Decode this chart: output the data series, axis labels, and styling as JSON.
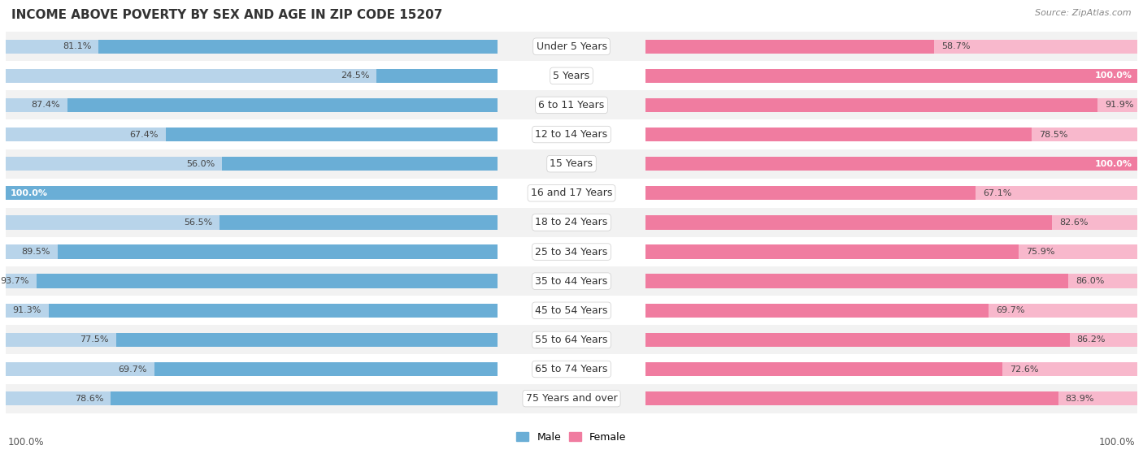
{
  "title": "INCOME ABOVE POVERTY BY SEX AND AGE IN ZIP CODE 15207",
  "source": "Source: ZipAtlas.com",
  "categories": [
    "Under 5 Years",
    "5 Years",
    "6 to 11 Years",
    "12 to 14 Years",
    "15 Years",
    "16 and 17 Years",
    "18 to 24 Years",
    "25 to 34 Years",
    "35 to 44 Years",
    "45 to 54 Years",
    "55 to 64 Years",
    "65 to 74 Years",
    "75 Years and over"
  ],
  "male_values": [
    81.1,
    24.5,
    87.4,
    67.4,
    56.0,
    100.0,
    56.5,
    89.5,
    93.7,
    91.3,
    77.5,
    69.7,
    78.6
  ],
  "female_values": [
    58.7,
    100.0,
    91.9,
    78.5,
    100.0,
    67.1,
    82.6,
    75.9,
    86.0,
    69.7,
    86.2,
    72.6,
    83.9
  ],
  "male_color": "#6aaed6",
  "female_color": "#f07ca0",
  "male_light_color": "#b8d4ea",
  "female_light_color": "#f8b8cc",
  "male_label": "Male",
  "female_label": "Female",
  "background_color": "#ffffff",
  "row_bg_even": "#f2f2f2",
  "row_bg_odd": "#ffffff",
  "title_fontsize": 11,
  "source_fontsize": 8,
  "label_fontsize": 8,
  "cat_fontsize": 9,
  "max_value": 100.0
}
